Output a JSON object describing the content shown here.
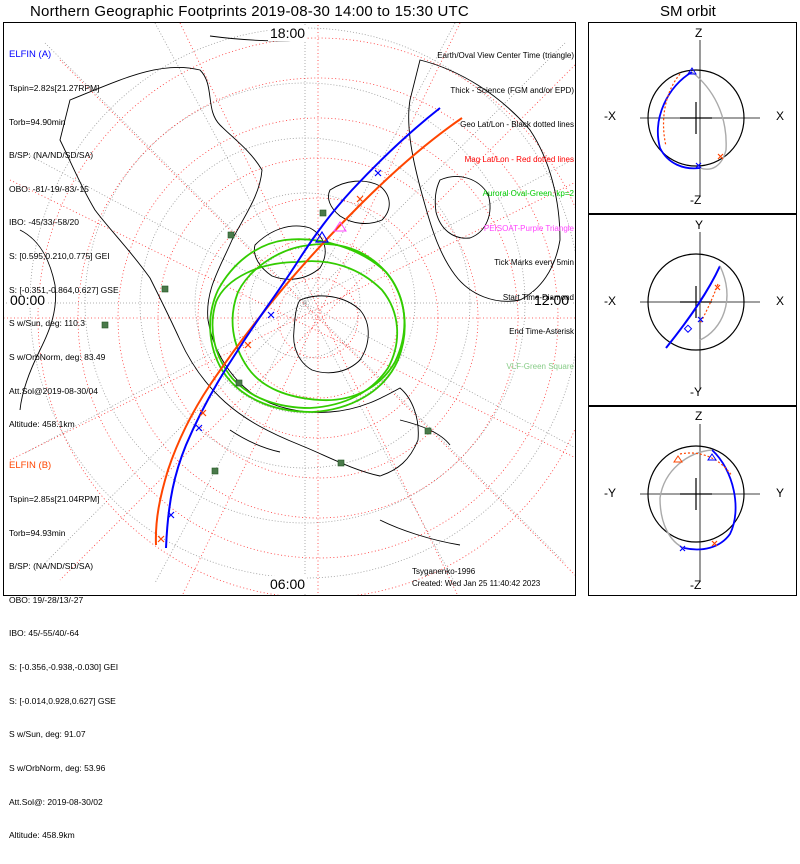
{
  "title": "Northern Geographic Footprints 2019-08-30 14:00 to 15:30 UTC",
  "sm_title": "SM orbit",
  "time_labels": {
    "top": "18:00",
    "left": "00:00",
    "right": "12:00",
    "bottom": "06:00"
  },
  "elfin_a": {
    "name": "ELFIN (A)",
    "color": "#0000ff",
    "lines": [
      "Tspin=2.82s[21.27RPM]",
      "Torb=94.90min",
      "B/SP: (NA/ND/SD/SA)",
      "OBO: -81/-19/-83/-15",
      "IBO: -45/33/-58/20",
      "S: [0.595,0.210,0.775] GEI",
      "S: [-0.351,-0.864,0.627] GSE",
      "S w/Sun, deg: 110.3",
      "S w/OrbNorm, deg: 83.49",
      "Att.Sol@2019-08-30/04",
      "Altitude: 458.1km"
    ]
  },
  "elfin_b": {
    "name": "ELFIN (B)",
    "color": "#ff4500",
    "lines": [
      "Tspin=2.85s[21.04RPM]",
      "Torb=94.93min",
      "B/SP: (NA/ND/SD/SA)",
      "OBO: 19/-28/13/-27",
      "IBO: 45/-55/40/-64",
      "S: [-0.356,-0.938,-0.030] GEI",
      "S: [-0.014,0.928,0.627] GSE",
      "S w/Sun, deg: 91.07",
      "S w/OrbNorm, deg: 53.96",
      "Att.Sol@: 2019-08-30/02",
      "Altitude: 458.9km"
    ]
  },
  "legend": [
    {
      "text": "Earth/Oval View Center Time (triangle)",
      "color": "#000000"
    },
    {
      "text": "Thick - Science (FGM and/or EPD)",
      "color": "#000000"
    },
    {
      "text": "Geo Lat/Lon - Black dotted lines",
      "color": "#000000"
    },
    {
      "text": "Mag Lat/Lon - Red dotted lines",
      "color": "#ff0000"
    },
    {
      "text": "Auroral Oval-Green, kp=2",
      "color": "#00cc00"
    },
    {
      "text": "PEISOAT-Purple Triangle",
      "color": "#ff44ff"
    },
    {
      "text": "Tick Marks every 5min",
      "color": "#000000"
    },
    {
      "text": "Start Time-Diamond",
      "color": "#000000"
    },
    {
      "text": "End Time-Asterisk",
      "color": "#000000"
    },
    {
      "text": "VLF-Green Square",
      "color": "#88cc88"
    }
  ],
  "credit": {
    "model": "Tsyganenko-1996",
    "created": "Created: Wed Jan 25 11:40:42 2023"
  },
  "sm_panels": [
    {
      "top": "Z",
      "bottom": "-Z",
      "left": "-X",
      "right": "X"
    },
    {
      "top": "Y",
      "bottom": "-Y",
      "left": "-X",
      "right": "X"
    },
    {
      "top": "Z",
      "bottom": "-Z",
      "left": "-Y",
      "right": "Y"
    }
  ],
  "colors": {
    "elfin_a": "#0000ff",
    "elfin_b": "#ff4500",
    "oval": "#33cc00",
    "grid_mag": "#ff0000",
    "vlf": "#447744"
  }
}
